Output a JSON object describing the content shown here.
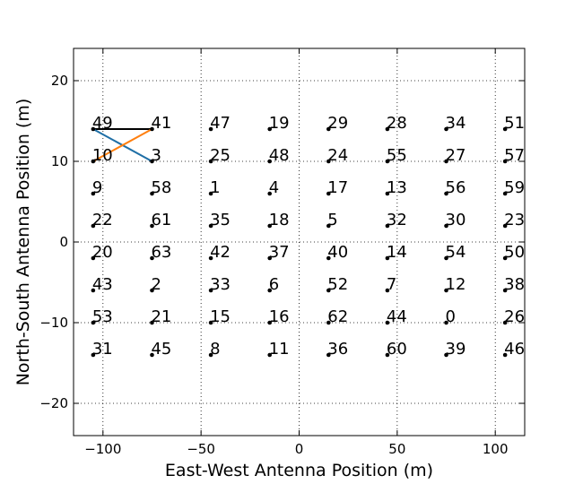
{
  "chart_data": {
    "type": "scatter",
    "title": "",
    "xlabel": "East-West Antenna Position (m)",
    "ylabel": "North-South Antenna Position (m)",
    "xlim": [
      -115,
      115
    ],
    "ylim": [
      -24,
      24
    ],
    "xticks": [
      -100,
      -50,
      0,
      50,
      100
    ],
    "yticks": [
      -20,
      -10,
      0,
      10,
      20
    ],
    "xtick_labels": [
      "−100",
      "−50",
      "0",
      "50",
      "100"
    ],
    "ytick_labels": [
      "−20",
      "−10",
      "0",
      "10",
      "20"
    ],
    "grid": true,
    "grid_style": "dotted",
    "point_color": "#000000",
    "antennas": [
      {
        "label": "49",
        "x": -105,
        "y": 14
      },
      {
        "label": "41",
        "x": -75,
        "y": 14
      },
      {
        "label": "47",
        "x": -45,
        "y": 14
      },
      {
        "label": "19",
        "x": -15,
        "y": 14
      },
      {
        "label": "29",
        "x": 15,
        "y": 14
      },
      {
        "label": "28",
        "x": 45,
        "y": 14
      },
      {
        "label": "34",
        "x": 75,
        "y": 14
      },
      {
        "label": "51",
        "x": 105,
        "y": 14
      },
      {
        "label": "10",
        "x": -105,
        "y": 10
      },
      {
        "label": "3",
        "x": -75,
        "y": 10
      },
      {
        "label": "25",
        "x": -45,
        "y": 10
      },
      {
        "label": "48",
        "x": -15,
        "y": 10
      },
      {
        "label": "24",
        "x": 15,
        "y": 10
      },
      {
        "label": "55",
        "x": 45,
        "y": 10
      },
      {
        "label": "27",
        "x": 75,
        "y": 10
      },
      {
        "label": "57",
        "x": 105,
        "y": 10
      },
      {
        "label": "9",
        "x": -105,
        "y": 6
      },
      {
        "label": "58",
        "x": -75,
        "y": 6
      },
      {
        "label": "1",
        "x": -45,
        "y": 6
      },
      {
        "label": "4",
        "x": -15,
        "y": 6
      },
      {
        "label": "17",
        "x": 15,
        "y": 6
      },
      {
        "label": "13",
        "x": 45,
        "y": 6
      },
      {
        "label": "56",
        "x": 75,
        "y": 6
      },
      {
        "label": "59",
        "x": 105,
        "y": 6
      },
      {
        "label": "22",
        "x": -105,
        "y": 2
      },
      {
        "label": "61",
        "x": -75,
        "y": 2
      },
      {
        "label": "35",
        "x": -45,
        "y": 2
      },
      {
        "label": "18",
        "x": -15,
        "y": 2
      },
      {
        "label": "5",
        "x": 15,
        "y": 2
      },
      {
        "label": "32",
        "x": 45,
        "y": 2
      },
      {
        "label": "30",
        "x": 75,
        "y": 2
      },
      {
        "label": "23",
        "x": 105,
        "y": 2
      },
      {
        "label": "20",
        "x": -105,
        "y": -2
      },
      {
        "label": "63",
        "x": -75,
        "y": -2
      },
      {
        "label": "42",
        "x": -45,
        "y": -2
      },
      {
        "label": "37",
        "x": -15,
        "y": -2
      },
      {
        "label": "40",
        "x": 15,
        "y": -2
      },
      {
        "label": "14",
        "x": 45,
        "y": -2
      },
      {
        "label": "54",
        "x": 75,
        "y": -2
      },
      {
        "label": "50",
        "x": 105,
        "y": -2
      },
      {
        "label": "43",
        "x": -105,
        "y": -6
      },
      {
        "label": "2",
        "x": -75,
        "y": -6
      },
      {
        "label": "33",
        "x": -45,
        "y": -6
      },
      {
        "label": "6",
        "x": -15,
        "y": -6
      },
      {
        "label": "52",
        "x": 15,
        "y": -6
      },
      {
        "label": "7",
        "x": 45,
        "y": -6
      },
      {
        "label": "12",
        "x": 75,
        "y": -6
      },
      {
        "label": "38",
        "x": 105,
        "y": -6
      },
      {
        "label": "53",
        "x": -105,
        "y": -10
      },
      {
        "label": "21",
        "x": -75,
        "y": -10
      },
      {
        "label": "15",
        "x": -45,
        "y": -10
      },
      {
        "label": "16",
        "x": -15,
        "y": -10
      },
      {
        "label": "62",
        "x": 15,
        "y": -10
      },
      {
        "label": "44",
        "x": 45,
        "y": -10
      },
      {
        "label": "0",
        "x": 75,
        "y": -10
      },
      {
        "label": "26",
        "x": 105,
        "y": -10
      },
      {
        "label": "31",
        "x": -105,
        "y": -14
      },
      {
        "label": "45",
        "x": -75,
        "y": -14
      },
      {
        "label": "8",
        "x": -45,
        "y": -14
      },
      {
        "label": "11",
        "x": -15,
        "y": -14
      },
      {
        "label": "36",
        "x": 15,
        "y": -14
      },
      {
        "label": "60",
        "x": 45,
        "y": -14
      },
      {
        "label": "39",
        "x": 75,
        "y": -14
      },
      {
        "label": "46",
        "x": 105,
        "y": -14
      }
    ],
    "baselines": [
      {
        "from": "49",
        "to": "41",
        "color": "#000000"
      },
      {
        "from": "49",
        "to": "3",
        "color": "#1f6fa6"
      },
      {
        "from": "10",
        "to": "41",
        "color": "#ff7f0e"
      }
    ]
  }
}
